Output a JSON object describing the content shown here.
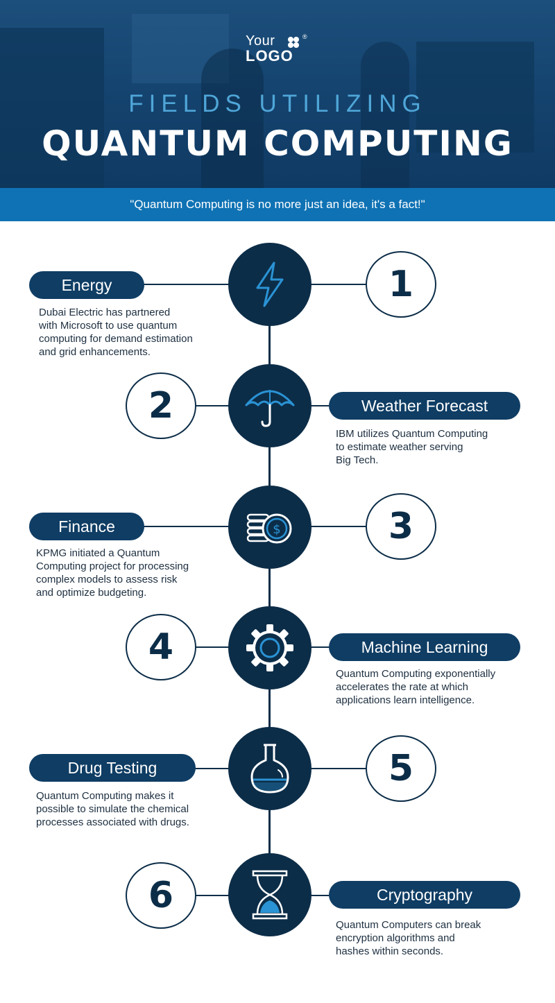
{
  "header": {
    "logo_line1": "Your",
    "logo_line2": "LOGO",
    "logo_reg": "®",
    "supertitle": "FIELDS UTILIZING",
    "title": "QUANTUM COMPUTING",
    "quote": "\"Quantum Computing is no more just an idea, it's a fact!\""
  },
  "colors": {
    "navy": "#0c2d48",
    "pill": "#0f3d64",
    "accent_blue": "#0f72b4",
    "light_blue": "#4fa6d8"
  },
  "items": [
    {
      "number": "1",
      "label": "Energy",
      "icon": "lightning-icon",
      "description": "Dubai Electric has partnered\nwith Microsoft to use quantum\ncomputing for demand estimation\nand grid enhancements."
    },
    {
      "number": "2",
      "label": "Weather Forecast",
      "icon": "umbrella-icon",
      "description": "IBM utilizes Quantum Computing\nto estimate weather serving\nBig Tech."
    },
    {
      "number": "3",
      "label": "Finance",
      "icon": "coins-icon",
      "description": "KPMG initiated a Quantum\nComputing project for processing\ncomplex models to assess risk\nand optimize budgeting."
    },
    {
      "number": "4",
      "label": "Machine Learning",
      "icon": "gear-icon",
      "description": "Quantum Computing exponentially\naccelerates the rate at which\napplications learn intelligence."
    },
    {
      "number": "5",
      "label": "Drug Testing",
      "icon": "flask-icon",
      "description": "Quantum Computing makes it\npossible to simulate the chemical\nprocesses associated with drugs."
    },
    {
      "number": "6",
      "label": "Cryptography",
      "icon": "hourglass-icon",
      "description": "Quantum Computers can break\nencryption algorithms and\nhashes within seconds."
    }
  ]
}
